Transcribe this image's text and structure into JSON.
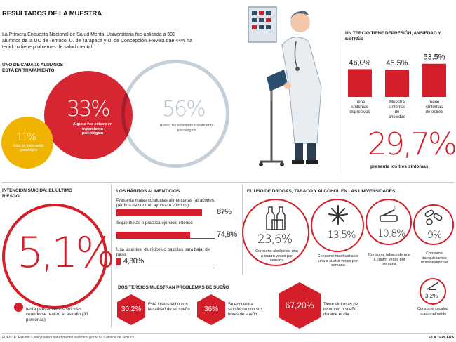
{
  "title": "RESULTADOS DE LA MUESTRA",
  "intro": "La Primera Encuesta Nacional de Salud Mental Universitaria fue aplicada a 600 alumnos de la UC de Temuco, U. de Tarapacá y U. de Concepción. Revela que 44% ha tenido o tiene problemas de salud mental.",
  "treatment": {
    "header": "UNO DE CADA 10 ALUMNOS ESTÁ EN TRATAMIENTO",
    "c33": {
      "value": "33%",
      "label": "Alguna vez estuvo en tratamiento psicológico"
    },
    "c56": {
      "value": "56%",
      "label": "Nunca ha solicitado tratamiento psicológico"
    },
    "c11": {
      "value": "11%",
      "label": "Está en tratamiento psicológico"
    }
  },
  "depression": {
    "header": "UN TERCIO TIENE DEPRESIÓN, ANSIEDAD Y ESTRÉS",
    "big": "29,7%",
    "big_label": "presenta los tres síntomas"
  },
  "suicide": {
    "header": "INTENCIÓN SUICIDA: EL ÚLTIMO RIESGO",
    "value": "5,1%",
    "label": "tenía pensamientos suicidas cuando se realizó el estudio (31 personas)"
  },
  "food": {
    "header": "LOS HÁBITOS ALIMENTICIOS"
  },
  "drugs": {
    "header": "EL USO DE DROGAS, TABACO Y ALCOHOL EN LAS UNIVERSIDADES",
    "items": [
      {
        "value": "23,6%",
        "label": "Consume alcohol de una a cuatro veces por semana"
      },
      {
        "value": "13,5%",
        "label": "Consume marihuana de una a cuatro veces por semana"
      },
      {
        "value": "10,8%",
        "label": "Consume tabaco de una a cuatro veces por semana"
      },
      {
        "value": "9%",
        "label": "Consume tranquilizantes ocasionalmente"
      },
      {
        "value": "3,2%",
        "label": "Consume cocaína ocasionalmente"
      }
    ]
  },
  "sleep": {
    "header": "DOS TERCIOS MUESTRAN PROBLEMAS DE SUEÑO",
    "items": [
      {
        "value": "30,2%",
        "label": "Está insatisfecho con la calidad de su sueño"
      },
      {
        "value": "36%",
        "label": "Se encuentra satisfecho con sus horas de sueño"
      },
      {
        "value": "67,20%",
        "label": "Tiene síntomas de insomnio o sueño durante el día"
      }
    ]
  },
  "footer": {
    "source": "FUENTE: Estudio Conicyt sobre salud mental realizado por la U. Católica de Temuco.",
    "brand": "• LA TERCERA"
  },
  "colors": {
    "accent": "#d41f2b",
    "yellow": "#f0b400",
    "gray_circle": "#c4cfd9"
  },
  "chart_data": [
    {
      "type": "bar",
      "categories": [
        "Tiene síntomas depresivos",
        "Muestra síntomas de ansiedad",
        "Tiene síntomas de estrés"
      ],
      "value_labels": [
        "46,0%",
        "45,5%",
        "53,5%"
      ],
      "values": [
        46.0,
        45.5,
        53.5
      ],
      "ylim": [
        0,
        60
      ]
    },
    {
      "type": "bar",
      "orientation": "horizontal",
      "categories": [
        "Presenta malas conductas alimentarias (atracones, pérdida de control, ayunos o vómitos)",
        "Sigue dietas o practica ejercicio intenso",
        "Usa laxantes, diuréticos o pastillas para bajar de peso"
      ],
      "value_labels": [
        "87%",
        "74,8%",
        "4,30%"
      ],
      "values": [
        87,
        74.8,
        4.3
      ],
      "xlim": [
        0,
        100
      ]
    }
  ]
}
